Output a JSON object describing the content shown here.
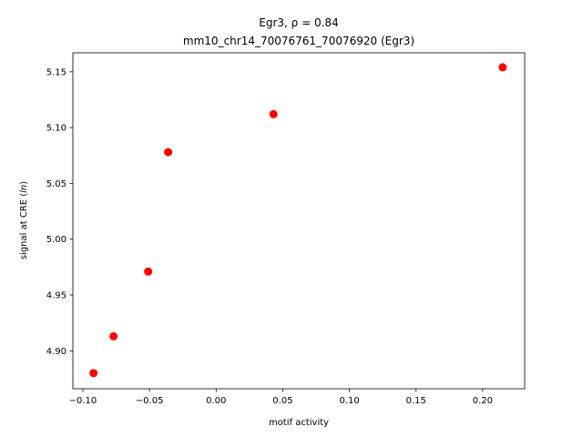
{
  "chart_data": {
    "type": "scatter",
    "title_line1": "Egr3, ρ = 0.84",
    "title_line2": "mm10_chr14_70076761_70076920 (Egr3)",
    "xlabel": "motif activity",
    "ylabel": "signal at CRE (ln)",
    "xlim": [
      -0.1075,
      0.2315
    ],
    "ylim": [
      4.866,
      5.167
    ],
    "xticks": [
      -0.1,
      -0.05,
      0.0,
      0.05,
      0.1,
      0.15,
      0.2
    ],
    "xtick_labels": [
      "−0.10",
      "−0.05",
      "0.00",
      "0.05",
      "0.10",
      "0.15",
      "0.20"
    ],
    "yticks": [
      4.9,
      4.95,
      5.0,
      5.05,
      5.1,
      5.15
    ],
    "ytick_labels": [
      "4.90",
      "4.95",
      "5.00",
      "5.05",
      "5.10",
      "5.15"
    ],
    "grid": false,
    "marker_color": "#ff0000",
    "points": [
      {
        "x": -0.092,
        "y": 4.88
      },
      {
        "x": -0.077,
        "y": 4.913
      },
      {
        "x": -0.051,
        "y": 4.971
      },
      {
        "x": -0.036,
        "y": 5.078
      },
      {
        "x": 0.043,
        "y": 5.112
      },
      {
        "x": 0.215,
        "y": 5.154
      }
    ]
  }
}
